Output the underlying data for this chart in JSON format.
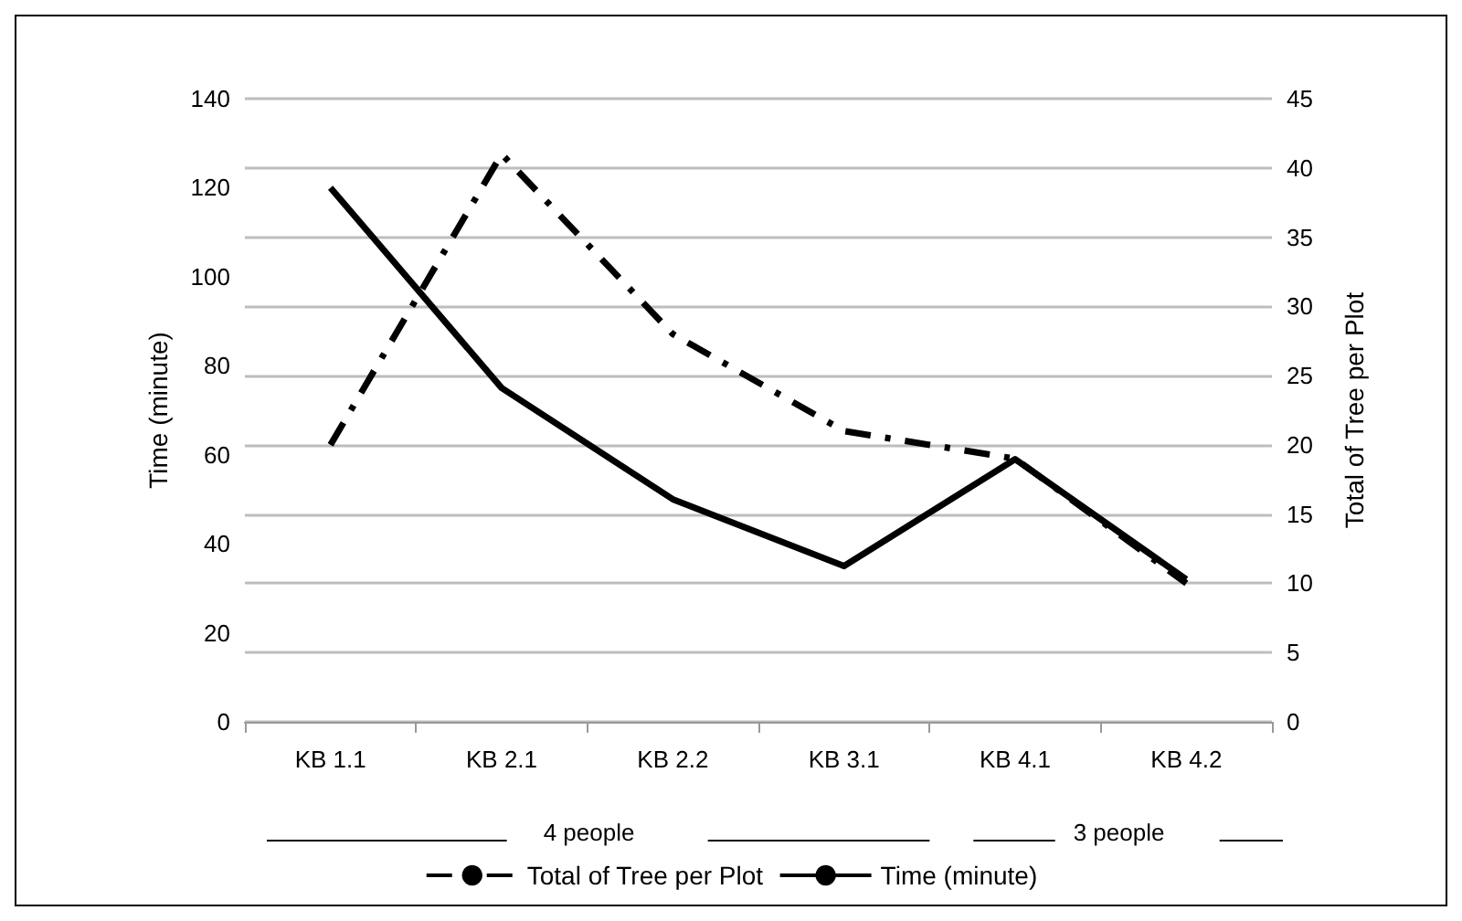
{
  "chart_data": {
    "type": "line",
    "ylabel": "Time (minute)",
    "y2label": "Total of Tree per Plot",
    "categories": [
      "KB 1.1",
      "KB 2.1",
      "KB 2.2",
      "KB 3.1",
      "KB 4.1",
      "KB 4.2"
    ],
    "series": [
      {
        "name": "Total of Tree per Plot",
        "color": "#000000",
        "axis": "y2",
        "line_style": "dashed",
        "values": [
          20,
          41,
          28,
          21,
          19,
          10
        ]
      },
      {
        "name": "Time (minute)",
        "color": "#000000",
        "line_style": "solid",
        "values": [
          120,
          75,
          50,
          35,
          59,
          32
        ]
      }
    ],
    "ylim": [
      0,
      140
    ],
    "yticks": [
      0,
      20,
      40,
      60,
      80,
      100,
      120,
      140
    ],
    "y2lim": [
      0,
      45
    ],
    "y2ticks": [
      0,
      5,
      10,
      15,
      20,
      25,
      30,
      35,
      40,
      45
    ],
    "grid": "y",
    "legend": "bottom",
    "marker": "none",
    "annotations": [
      "4 people",
      "3 people"
    ]
  }
}
